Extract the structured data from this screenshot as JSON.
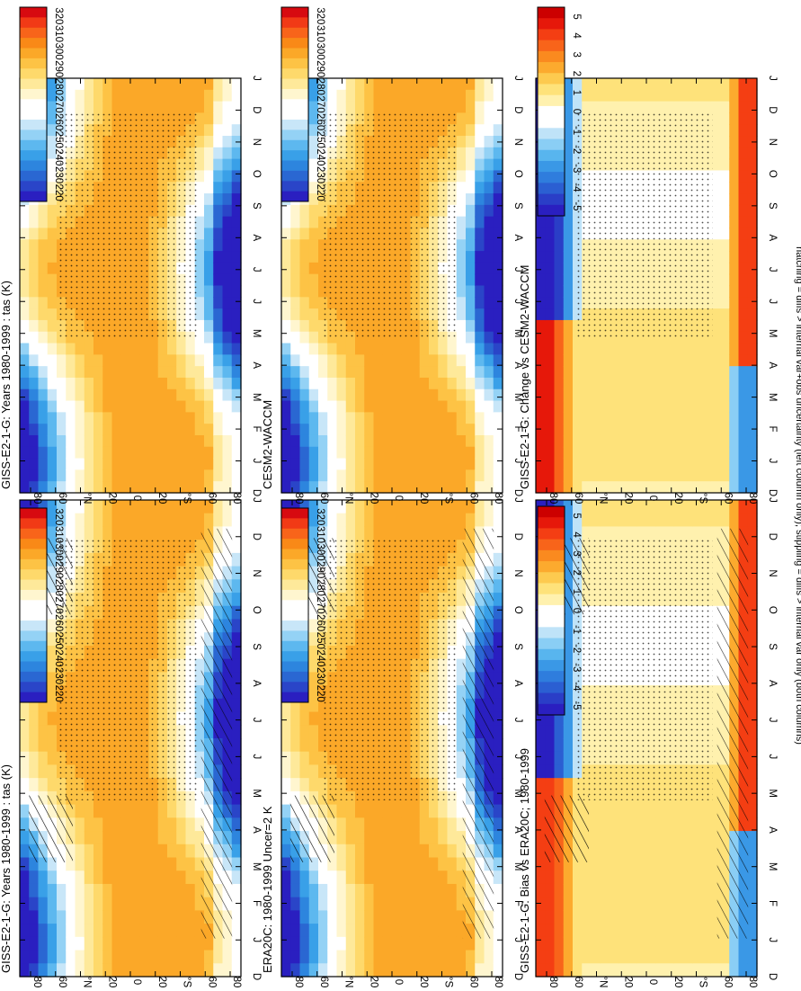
{
  "figure": {
    "footnote": "hatching = diffs > internal var+obs uncertainty (left column only); stippling = diffs > internal var only (both columns)"
  },
  "colors": {
    "abs_scale": [
      "#d70a10",
      "#f13a16",
      "#f8641a",
      "#f98917",
      "#fba828",
      "#fdc345",
      "#fed96b",
      "#fee99a",
      "#fff6cf",
      "#ffffff",
      "#ffffff",
      "#c8e6f8",
      "#94d2f5",
      "#5db8ef",
      "#39a0e8",
      "#2d85de",
      "#2a67d2",
      "#2a45c8",
      "#2a1fc0"
    ],
    "anom_scale": [
      "#cc0000",
      "#e6180a",
      "#f43e13",
      "#f8641a",
      "#fa8a1f",
      "#fcaa2e",
      "#fdca4f",
      "#fee27a",
      "#fff1ae",
      "#ffffff",
      "#ffffff",
      "#bfe3f8",
      "#8acef5",
      "#58b5ee",
      "#3a98e6",
      "#2f7ddd",
      "#2b5fd2",
      "#2a3ec7",
      "#2a1fc0"
    ]
  },
  "chart_data": [
    {
      "type": "heatmap",
      "title": "GISS-E2-1-G: Years 1980-1999 : tas (K)",
      "x": [
        "D",
        "J",
        "F",
        "M",
        "A",
        "M",
        "J",
        "J",
        "A",
        "S",
        "O",
        "N",
        "D",
        "J"
      ],
      "y_ticks": [
        "80",
        "60",
        "°N",
        "20",
        "0",
        "20",
        "°S",
        "60",
        "80"
      ],
      "colorbar_ticks": [
        "320",
        "310",
        "300",
        "290",
        "280",
        "270",
        "260",
        "250",
        "240",
        "230",
        "220"
      ],
      "colorbar_range": [
        215,
        325
      ],
      "hatching": true,
      "stippling": true
    },
    {
      "type": "heatmap",
      "title": "ERA20C: 1980-1999 Uncer=2 K",
      "x": [
        "D",
        "J",
        "F",
        "M",
        "A",
        "M",
        "J",
        "J",
        "A",
        "S",
        "O",
        "N",
        "D",
        "J"
      ],
      "y_ticks": [
        "80",
        "60",
        "°N",
        "20",
        "0",
        "20",
        "°S",
        "60",
        "80"
      ],
      "colorbar_ticks": [
        "320",
        "310",
        "300",
        "290",
        "280",
        "270",
        "260",
        "250",
        "240",
        "230",
        "220"
      ],
      "colorbar_range": [
        215,
        325
      ],
      "hatching": true,
      "stippling": true
    },
    {
      "type": "heatmap",
      "title": "GISS-E2-1-G: Bias vs ERA20C; 1980-1999",
      "x": [
        "D",
        "J",
        "F",
        "M",
        "A",
        "M",
        "J",
        "J",
        "A",
        "S",
        "O",
        "N",
        "D",
        "J"
      ],
      "y_ticks": [
        "80",
        "60",
        "°N",
        "20",
        "0",
        "20",
        "°S",
        "60",
        "80"
      ],
      "colorbar_ticks": [
        "5",
        "4",
        "3",
        "2",
        "1",
        "0",
        "-1",
        "-2",
        "-3",
        "-4",
        "-5"
      ],
      "colorbar_range": [
        -5.5,
        5.5
      ],
      "hatching": true,
      "stippling": true
    },
    {
      "type": "heatmap",
      "title": "GISS-E2-1-G: Years 1980-1999 : tas (K)",
      "x": [
        "D",
        "J",
        "F",
        "M",
        "A",
        "M",
        "J",
        "J",
        "A",
        "S",
        "O",
        "N",
        "D",
        "J"
      ],
      "y_ticks": [
        "80",
        "60",
        "°N",
        "20",
        "0",
        "20",
        "°S",
        "60",
        "80"
      ],
      "colorbar_ticks": [
        "320",
        "310",
        "300",
        "290",
        "280",
        "270",
        "260",
        "250",
        "240",
        "230",
        "220"
      ],
      "colorbar_range": [
        215,
        325
      ],
      "hatching": false,
      "stippling": true
    },
    {
      "type": "heatmap",
      "title": "CESM2-WACCM",
      "x": [
        "D",
        "J",
        "F",
        "M",
        "A",
        "M",
        "J",
        "J",
        "A",
        "S",
        "O",
        "N",
        "D",
        "J"
      ],
      "y_ticks": [
        "80",
        "60",
        "°N",
        "20",
        "0",
        "20",
        "°S",
        "60",
        "80"
      ],
      "colorbar_ticks": [
        "320",
        "310",
        "300",
        "290",
        "280",
        "270",
        "260",
        "250",
        "240",
        "230",
        "220"
      ],
      "colorbar_range": [
        215,
        325
      ],
      "hatching": false,
      "stippling": true
    },
    {
      "type": "heatmap",
      "title": "GISS-E2-1-G: Change vs CESM2-WACCM",
      "x": [
        "D",
        "J",
        "F",
        "M",
        "A",
        "M",
        "J",
        "J",
        "A",
        "S",
        "O",
        "N",
        "D",
        "J"
      ],
      "y_ticks": [
        "80",
        "60",
        "°N",
        "20",
        "0",
        "20",
        "°S",
        "60",
        "80"
      ],
      "colorbar_ticks": [
        "5",
        "4",
        "3",
        "2",
        "1",
        "0",
        "-1",
        "-2",
        "-3",
        "-4",
        "-5"
      ],
      "colorbar_range": [
        -5.5,
        5.5
      ],
      "hatching": false,
      "stippling": true
    }
  ]
}
